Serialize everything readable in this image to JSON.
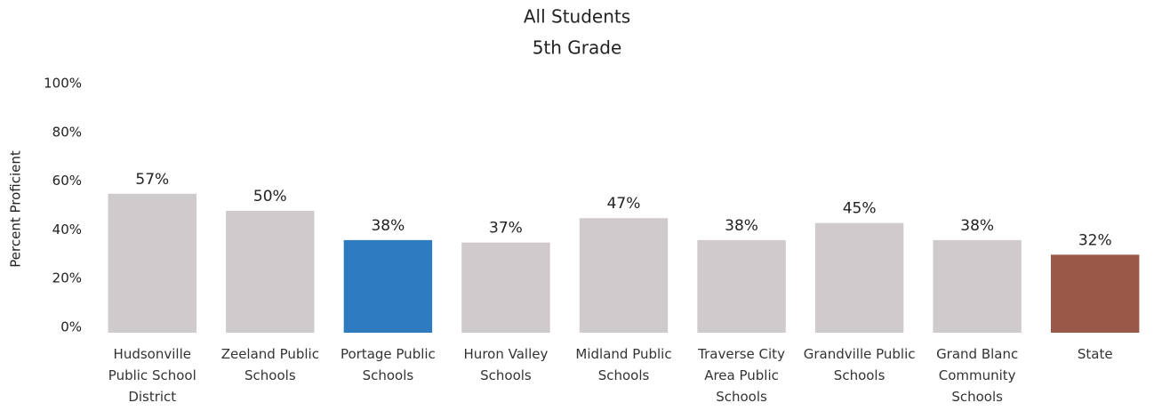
{
  "chart_data": {
    "type": "bar",
    "title": "All Students",
    "subtitle": "5th Grade",
    "y_label": "Percent Proficient",
    "categories": [
      "Hudsonville Public School District",
      "Zeeland Public Schools",
      "Portage Public Schools",
      "Huron Valley Schools",
      "Midland Public Schools",
      "Traverse City Area Public Schools",
      "Grandville Public Schools",
      "Grand Blanc Community Schools",
      "State"
    ],
    "values": [
      57,
      50,
      38,
      37,
      47,
      38,
      45,
      38,
      32
    ],
    "value_labels": [
      "57%",
      "50%",
      "38%",
      "37%",
      "47%",
      "38%",
      "45%",
      "38%",
      "32%"
    ],
    "colors": [
      "#cfcacb",
      "#cfcacb",
      "#2f7bbf",
      "#cfcacb",
      "#cfcacb",
      "#cfcacb",
      "#cfcacb",
      "#cfcacb",
      "#9a5848"
    ],
    "ylim": [
      0,
      100
    ],
    "yticks": [
      {
        "value": 0,
        "label": "0%"
      },
      {
        "value": 20,
        "label": "20%"
      },
      {
        "value": 40,
        "label": "40%"
      },
      {
        "value": 60,
        "label": "60%"
      },
      {
        "value": 80,
        "label": "80%"
      },
      {
        "value": 100,
        "label": "100%"
      }
    ],
    "grid": false
  }
}
